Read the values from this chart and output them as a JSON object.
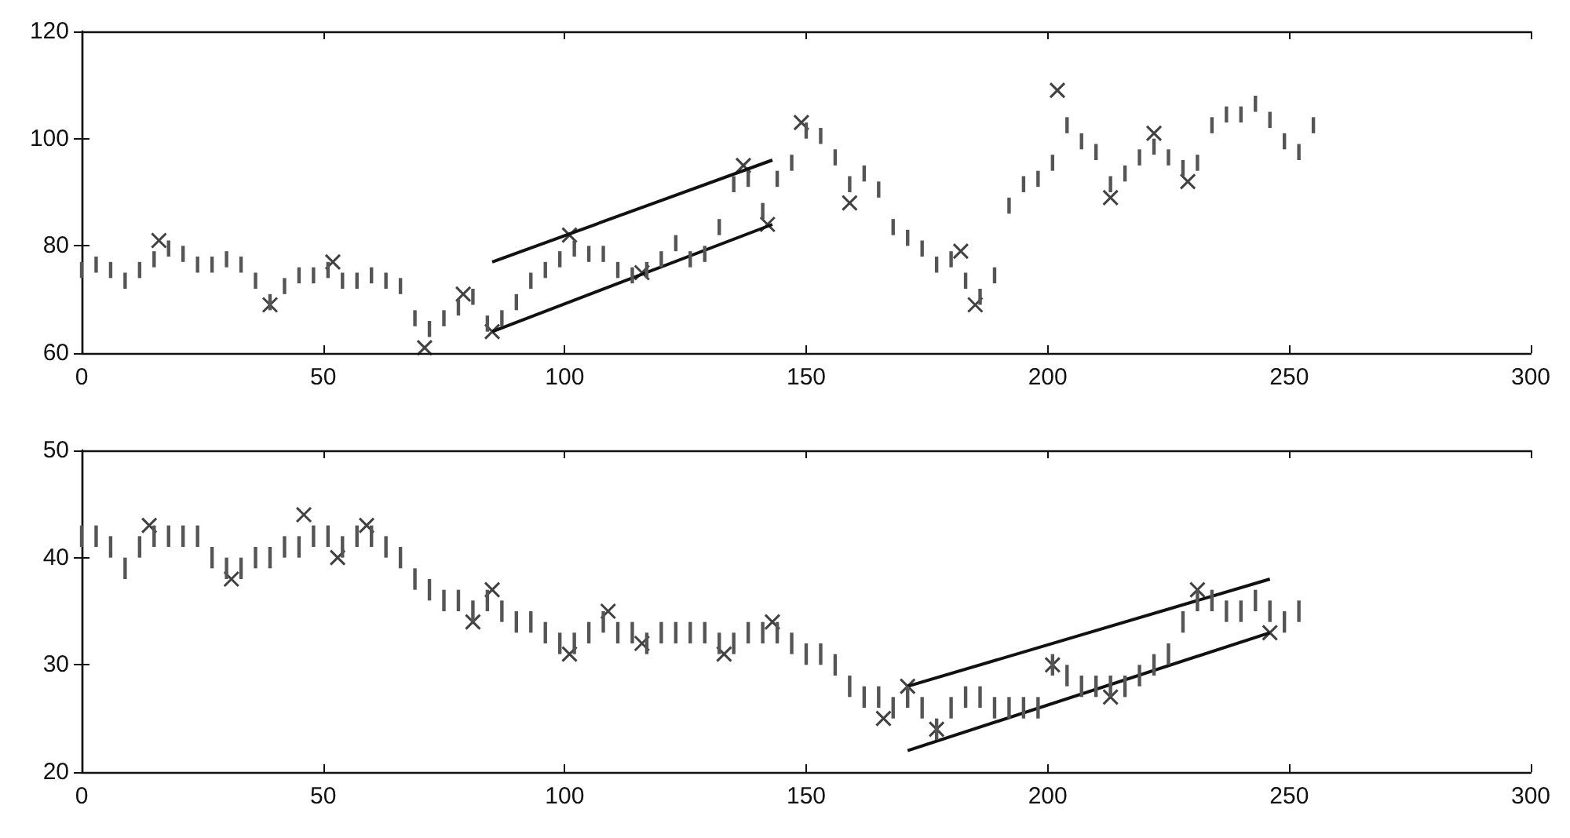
{
  "chart_data": [
    {
      "type": "bar",
      "xlim": [
        0,
        300
      ],
      "xticks": [
        0,
        50,
        100,
        150,
        200,
        250,
        300
      ],
      "ylim": [
        60,
        120
      ],
      "yticks": [
        60,
        80,
        100,
        120
      ],
      "grid": false,
      "series": [
        {
          "color": "#555555",
          "x": [
            0,
            3,
            6,
            9,
            12,
            15,
            18,
            21,
            24,
            27,
            30,
            33,
            36,
            39,
            42,
            45,
            48,
            51,
            54,
            57,
            60,
            63,
            66,
            69,
            72,
            75,
            78,
            81,
            84,
            87,
            90,
            93,
            96,
            99,
            102,
            105,
            108,
            111,
            114,
            117,
            120,
            123,
            126,
            129,
            132,
            135,
            138,
            141,
            144,
            147,
            150,
            153,
            156,
            159,
            162,
            165,
            168,
            171,
            174,
            177,
            180,
            183,
            186,
            189,
            192,
            195,
            198,
            201,
            204,
            207,
            210,
            213,
            216,
            219,
            222,
            225,
            228,
            231,
            234,
            237,
            240,
            243,
            246,
            249,
            252,
            255
          ],
          "base": [
            74,
            75,
            74,
            72,
            74,
            76,
            78,
            77,
            75,
            75,
            76,
            75,
            72,
            68,
            71,
            73,
            73,
            74,
            72,
            72,
            73,
            72,
            71,
            65,
            63,
            65,
            67,
            69,
            64,
            65,
            68,
            72,
            74,
            76,
            78,
            77,
            77,
            74,
            73,
            74,
            76,
            79,
            76,
            77,
            82,
            90,
            91,
            85,
            91,
            94,
            100,
            99,
            95,
            90,
            92,
            89,
            82,
            80,
            78,
            75,
            76,
            72,
            69,
            73,
            86,
            90,
            91,
            94,
            101,
            98,
            96,
            90,
            92,
            95,
            97,
            95,
            93,
            94,
            101,
            103,
            103,
            105,
            102,
            98,
            96,
            101
          ],
          "values": [
            3,
            3,
            3,
            3,
            3,
            3,
            3,
            3,
            3,
            3,
            3,
            3,
            3,
            3,
            3,
            3,
            3,
            3,
            3,
            3,
            3,
            3,
            3,
            3,
            3,
            3,
            3,
            3,
            3,
            3,
            3,
            3,
            3,
            3,
            3,
            3,
            3,
            3,
            3,
            3,
            3,
            3,
            3,
            3,
            3,
            3,
            3,
            3,
            3,
            3,
            3,
            3,
            3,
            3,
            3,
            3,
            3,
            3,
            3,
            3,
            3,
            3,
            3,
            3,
            3,
            3,
            3,
            3,
            3,
            3,
            3,
            3,
            3,
            3,
            3,
            3,
            3,
            3,
            3,
            3,
            3,
            3,
            3,
            3,
            3,
            3
          ]
        },
        {
          "type": "scatter",
          "marker": "cross",
          "color": "#111111",
          "x": [
            16,
            39,
            52,
            71,
            79,
            85,
            101,
            116,
            137,
            142,
            149,
            159,
            182,
            185,
            202,
            213,
            222,
            229
          ],
          "values": [
            81,
            69,
            77,
            61,
            71,
            64,
            82,
            75,
            95,
            84,
            103,
            88,
            79,
            69,
            109,
            89,
            101,
            92
          ]
        },
        {
          "type": "line",
          "marker": "none",
          "color": "#111111",
          "x": [
            85,
            143
          ],
          "values": [
            77,
            96
          ]
        },
        {
          "type": "line",
          "marker": "none",
          "color": "#111111",
          "x": [
            85,
            143
          ],
          "values": [
            64,
            84
          ]
        }
      ]
    },
    {
      "type": "bar",
      "xlim": [
        0,
        300
      ],
      "xticks": [
        0,
        50,
        100,
        150,
        200,
        250,
        300
      ],
      "ylim": [
        20,
        50
      ],
      "yticks": [
        20,
        30,
        40,
        50
      ],
      "grid": false,
      "series": [
        {
          "color": "#555555",
          "x": [
            0,
            3,
            6,
            9,
            12,
            15,
            18,
            21,
            24,
            27,
            30,
            33,
            36,
            39,
            42,
            45,
            48,
            51,
            54,
            57,
            60,
            63,
            66,
            69,
            72,
            75,
            78,
            81,
            84,
            87,
            90,
            93,
            96,
            99,
            102,
            105,
            108,
            111,
            114,
            117,
            120,
            123,
            126,
            129,
            132,
            135,
            138,
            141,
            144,
            147,
            150,
            153,
            156,
            159,
            162,
            165,
            168,
            171,
            174,
            177,
            180,
            183,
            186,
            189,
            192,
            195,
            198,
            201,
            204,
            207,
            210,
            213,
            216,
            219,
            222,
            225,
            228,
            231,
            234,
            237,
            240,
            243,
            246,
            249,
            252
          ],
          "base": [
            41,
            41,
            40,
            38,
            40,
            41,
            41,
            41,
            41,
            39,
            38,
            38,
            39,
            39,
            40,
            40,
            41,
            41,
            40,
            41,
            41,
            40,
            39,
            37,
            36,
            35,
            35,
            34,
            35,
            34,
            33,
            33,
            32,
            31,
            31,
            32,
            33,
            32,
            32,
            31,
            32,
            32,
            32,
            32,
            31,
            31,
            32,
            32,
            32,
            31,
            30,
            30,
            29,
            27,
            26,
            26,
            25,
            26,
            25,
            23,
            25,
            26,
            26,
            25,
            25,
            25,
            25,
            29,
            28,
            27,
            27,
            27,
            27,
            28,
            29,
            30,
            33,
            35,
            35,
            34,
            34,
            35,
            34,
            33,
            34
          ],
          "values": [
            2,
            2,
            2,
            2,
            2,
            2,
            2,
            2,
            2,
            2,
            2,
            2,
            2,
            2,
            2,
            2,
            2,
            2,
            2,
            2,
            2,
            2,
            2,
            2,
            2,
            2,
            2,
            2,
            2,
            2,
            2,
            2,
            2,
            2,
            2,
            2,
            2,
            2,
            2,
            2,
            2,
            2,
            2,
            2,
            2,
            2,
            2,
            2,
            2,
            2,
            2,
            2,
            2,
            2,
            2,
            2,
            2,
            2,
            2,
            2,
            2,
            2,
            2,
            2,
            2,
            2,
            2,
            2,
            2,
            2,
            2,
            2,
            2,
            2,
            2,
            2,
            2,
            2,
            2,
            2,
            2,
            2,
            2,
            2,
            2
          ]
        },
        {
          "type": "scatter",
          "marker": "cross",
          "color": "#111111",
          "x": [
            14,
            31,
            46,
            53,
            59,
            81,
            85,
            101,
            109,
            116,
            133,
            143,
            166,
            171,
            177,
            201,
            213,
            231,
            246
          ],
          "values": [
            43,
            38,
            44,
            40,
            43,
            34,
            37,
            31,
            35,
            32,
            31,
            34,
            25,
            28,
            24,
            30,
            27,
            37,
            33
          ]
        },
        {
          "type": "line",
          "marker": "none",
          "color": "#111111",
          "x": [
            171,
            246
          ],
          "values": [
            28,
            38
          ]
        },
        {
          "type": "line",
          "marker": "none",
          "color": "#111111",
          "x": [
            171,
            246
          ],
          "values": [
            22,
            33
          ]
        }
      ]
    }
  ]
}
